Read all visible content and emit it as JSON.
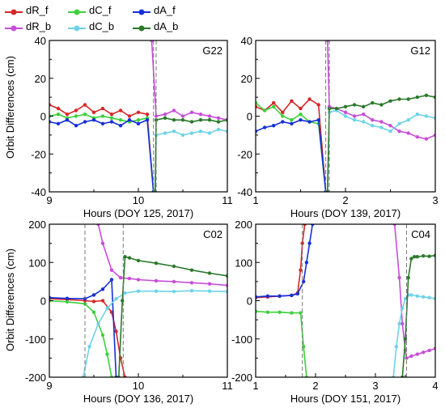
{
  "legend": [
    {
      "label": "dR_f",
      "color": "#d62728"
    },
    {
      "label": "dC_f",
      "color": "#3cd13c"
    },
    {
      "label": "dA_f",
      "color": "#1530d8"
    },
    {
      "label": "dR_b",
      "color": "#c84dd9"
    },
    {
      "label": "dC_b",
      "color": "#6ed3e8"
    },
    {
      "label": "dA_b",
      "color": "#2a7a2a"
    }
  ],
  "ylabel_top": "Orbit Differences (cm)",
  "ylabel_bottom": "Orbit Differences (cm)",
  "chart_data": [
    {
      "type": "line",
      "title": "G22",
      "xlabel": "Hours (DOY 125, 2017)",
      "xlim": [
        9,
        11
      ],
      "ylim": [
        -40,
        40
      ],
      "xticks": [
        "9",
        "10",
        "11"
      ],
      "yticks": [
        "-40",
        "-20",
        "0",
        "20",
        "40"
      ],
      "vlines": [
        10.17,
        10.2
      ],
      "series": [
        {
          "name": "dR_f",
          "x": [
            9.0,
            9.1,
            9.2,
            9.3,
            9.4,
            9.5,
            9.6,
            9.7,
            9.8,
            9.9,
            10.0,
            10.1,
            10.17
          ],
          "y": [
            6,
            4,
            1,
            3,
            6,
            2,
            4,
            1,
            3,
            0,
            2,
            1,
            -40
          ]
        },
        {
          "name": "dC_f",
          "x": [
            9.0,
            9.1,
            9.2,
            9.3,
            9.4,
            9.5,
            9.6,
            9.7,
            9.8,
            9.9,
            10.0,
            10.1,
            10.17
          ],
          "y": [
            0,
            1,
            -1,
            0,
            1,
            -1,
            0,
            -1,
            -2,
            -3,
            -2,
            -1,
            -40
          ]
        },
        {
          "name": "dA_f",
          "x": [
            9.0,
            9.1,
            9.2,
            9.3,
            9.4,
            9.5,
            9.6,
            9.7,
            9.8,
            9.9,
            10.0,
            10.1,
            10.17
          ],
          "y": [
            -3,
            -4,
            -2,
            -5,
            -3,
            -2,
            -4,
            -3,
            -5,
            -2,
            -4,
            -2,
            -40
          ]
        },
        {
          "name": "dR_b",
          "x": [
            10.15,
            10.2,
            10.3,
            10.4,
            10.5,
            10.6,
            10.7,
            10.8,
            10.9,
            11.0
          ],
          "y": [
            40,
            0,
            1,
            3,
            0,
            2,
            1,
            0,
            -1,
            -2
          ]
        },
        {
          "name": "dC_b",
          "x": [
            10.19,
            10.2,
            10.3,
            10.4,
            10.5,
            10.6,
            10.7,
            10.8,
            10.9,
            11.0
          ],
          "y": [
            -40,
            -10,
            -9,
            -8,
            -10,
            -9,
            -8,
            -9,
            -7,
            -8
          ]
        },
        {
          "name": "dA_b",
          "x": [
            10.19,
            10.2,
            10.3,
            10.4,
            10.5,
            10.6,
            10.7,
            10.8,
            10.9,
            11.0
          ],
          "y": [
            -40,
            -2,
            -1,
            -2,
            -2,
            -3,
            -2,
            -2,
            -3,
            -2
          ]
        }
      ]
    },
    {
      "type": "line",
      "title": "G12",
      "xlabel": "Hours (DOY 139, 2017)",
      "xlim": [
        1,
        3
      ],
      "ylim": [
        -40,
        40
      ],
      "xticks": [
        "1",
        "2",
        "3"
      ],
      "yticks": [
        "-40",
        "-20",
        "0",
        "20",
        "40"
      ],
      "vlines": [
        1.78,
        1.82
      ],
      "series": [
        {
          "name": "dR_f",
          "x": [
            1.0,
            1.1,
            1.2,
            1.3,
            1.4,
            1.5,
            1.6,
            1.7,
            1.78
          ],
          "y": [
            5,
            3,
            7,
            2,
            8,
            4,
            9,
            6,
            -40
          ]
        },
        {
          "name": "dC_f",
          "x": [
            1.0,
            1.1,
            1.2,
            1.3,
            1.4,
            1.5,
            1.6,
            1.7,
            1.78
          ],
          "y": [
            7,
            3,
            5,
            0,
            -2,
            1,
            -3,
            -4,
            -40
          ]
        },
        {
          "name": "dA_f",
          "x": [
            1.0,
            1.1,
            1.2,
            1.3,
            1.4,
            1.5,
            1.6,
            1.7,
            1.78
          ],
          "y": [
            -8,
            -6,
            -5,
            -3,
            -4,
            -2,
            -3,
            -2,
            -40
          ]
        },
        {
          "name": "dR_b",
          "x": [
            1.8,
            1.82,
            1.9,
            2.0,
            2.1,
            2.2,
            2.3,
            2.4,
            2.5,
            2.6,
            2.7,
            2.8,
            2.9,
            3.0
          ],
          "y": [
            40,
            5,
            4,
            2,
            0,
            1,
            -2,
            -3,
            -5,
            -8,
            -9,
            -11,
            -12,
            -10
          ]
        },
        {
          "name": "dC_b",
          "x": [
            1.8,
            1.82,
            1.9,
            2.0,
            2.1,
            2.2,
            2.3,
            2.4,
            2.5,
            2.6,
            2.7,
            2.8,
            2.9,
            3.0
          ],
          "y": [
            -40,
            2,
            3,
            0,
            -2,
            -3,
            -5,
            -6,
            -8,
            -4,
            -2,
            1,
            0,
            -1
          ]
        },
        {
          "name": "dA_b",
          "x": [
            1.8,
            1.82,
            1.9,
            2.0,
            2.1,
            2.2,
            2.3,
            2.4,
            2.5,
            2.6,
            2.7,
            2.8,
            2.9,
            3.0
          ],
          "y": [
            -40,
            4,
            4,
            5,
            6,
            5,
            7,
            6,
            8,
            9,
            9,
            10,
            11,
            10
          ]
        }
      ]
    },
    {
      "type": "line",
      "title": "C02",
      "xlabel": "Hours (DOY 136, 2017)",
      "xlim": [
        9,
        11
      ],
      "ylim": [
        -200,
        200
      ],
      "xticks": [
        "9",
        "10",
        "11"
      ],
      "yticks": [
        "-200",
        "-100",
        "0",
        "100",
        "200"
      ],
      "vlines": [
        9.4,
        9.83
      ],
      "series": [
        {
          "name": "dR_f",
          "x": [
            9.0,
            9.2,
            9.4,
            9.5,
            9.6,
            9.7,
            9.75,
            9.8,
            9.85
          ],
          "y": [
            5,
            3,
            0,
            -2,
            0,
            -30,
            -80,
            -150,
            -200
          ]
        },
        {
          "name": "dC_f",
          "x": [
            9.0,
            9.2,
            9.4,
            9.5,
            9.6,
            9.65,
            9.7
          ],
          "y": [
            0,
            -3,
            -8,
            -30,
            -90,
            -140,
            -200
          ]
        },
        {
          "name": "dA_f",
          "x": [
            9.0,
            9.2,
            9.4,
            9.5,
            9.6,
            9.7,
            9.75
          ],
          "y": [
            8,
            6,
            5,
            15,
            30,
            55,
            -200
          ]
        },
        {
          "name": "dR_b",
          "x": [
            9.55,
            9.6,
            9.7,
            9.8,
            9.9,
            10.0,
            10.2,
            10.4,
            10.6,
            10.8,
            11.0
          ],
          "y": [
            200,
            150,
            80,
            60,
            58,
            55,
            52,
            50,
            47,
            44,
            40
          ]
        },
        {
          "name": "dC_b",
          "x": [
            9.38,
            9.45,
            9.55,
            9.65,
            9.75,
            9.85,
            10.0,
            10.2,
            10.4,
            10.6,
            10.8,
            11.0
          ],
          "y": [
            -200,
            -120,
            -60,
            -20,
            5,
            20,
            25,
            25,
            24,
            26,
            25,
            24
          ]
        },
        {
          "name": "dA_b",
          "x": [
            9.78,
            9.82,
            9.85,
            9.9,
            10.0,
            10.2,
            10.4,
            10.6,
            10.8,
            11.0
          ],
          "y": [
            -200,
            0,
            115,
            112,
            105,
            98,
            90,
            80,
            72,
            65
          ]
        }
      ]
    },
    {
      "type": "line",
      "title": "C04",
      "xlabel": "Hours (DOY 151, 2017)",
      "xlim": [
        1,
        4
      ],
      "ylim": [
        -200,
        200
      ],
      "xticks": [
        "1",
        "2",
        "3",
        "4"
      ],
      "yticks": [
        "-200",
        "-100",
        "0",
        "100",
        "200"
      ],
      "vlines": [
        1.78,
        3.52
      ],
      "series": [
        {
          "name": "dR_f",
          "x": [
            1.0,
            1.2,
            1.4,
            1.6,
            1.7,
            1.75,
            1.78,
            1.82
          ],
          "y": [
            8,
            10,
            12,
            14,
            20,
            80,
            150,
            200
          ]
        },
        {
          "name": "dC_f",
          "x": [
            1.0,
            1.2,
            1.4,
            1.6,
            1.75,
            1.8,
            1.85
          ],
          "y": [
            -28,
            -30,
            -30,
            -32,
            -32,
            -120,
            -200
          ]
        },
        {
          "name": "dA_f",
          "x": [
            1.0,
            1.2,
            1.4,
            1.6,
            1.7,
            1.8,
            1.85,
            1.9,
            1.95
          ],
          "y": [
            10,
            12,
            12,
            14,
            18,
            50,
            100,
            150,
            200
          ]
        },
        {
          "name": "dR_b",
          "x": [
            3.32,
            3.4,
            3.45,
            3.5,
            3.52,
            3.6,
            3.7,
            3.8,
            3.9,
            4.0
          ],
          "y": [
            200,
            60,
            -60,
            -130,
            -150,
            -145,
            -140,
            -135,
            -130,
            -125
          ]
        },
        {
          "name": "dC_b",
          "x": [
            3.3,
            3.35,
            3.4,
            3.45,
            3.5,
            3.55,
            3.6,
            3.7,
            3.8,
            3.9,
            4.0
          ],
          "y": [
            -200,
            -120,
            -60,
            -20,
            5,
            15,
            15,
            12,
            10,
            8,
            5
          ]
        },
        {
          "name": "dA_b",
          "x": [
            3.45,
            3.5,
            3.55,
            3.6,
            3.65,
            3.7,
            3.8,
            3.9,
            4.0
          ],
          "y": [
            -200,
            -100,
            60,
            110,
            115,
            115,
            117,
            116,
            118
          ]
        }
      ]
    }
  ]
}
